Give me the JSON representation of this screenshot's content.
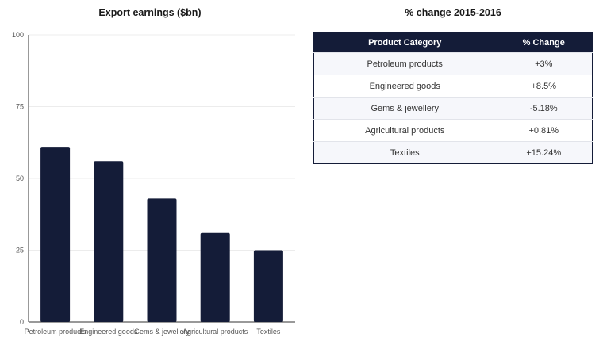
{
  "chart_data": {
    "type": "bar",
    "title": "Export earnings ($bn)",
    "categories": [
      "Petroleum products",
      "Engineered goods",
      "Gems & jewellery",
      "Agricultural products",
      "Textiles"
    ],
    "values": [
      61,
      56,
      43,
      31,
      25
    ],
    "xlabel": "",
    "ylabel": "",
    "ylim": [
      0,
      100
    ],
    "yticks": [
      0,
      25,
      50,
      75,
      100
    ],
    "grid": true,
    "bar_color": "#141c38"
  },
  "table": {
    "title": "% change 2015-2016",
    "headers": [
      "Product Category",
      "% Change"
    ],
    "rows": [
      [
        "Petroleum products",
        "+3%"
      ],
      [
        "Engineered goods",
        "+8.5%"
      ],
      [
        "Gems & jewellery",
        "-5.18%"
      ],
      [
        "Agricultural products",
        "+0.81%"
      ],
      [
        "Textiles",
        "+15.24%"
      ]
    ],
    "header_color": "#141c38"
  }
}
